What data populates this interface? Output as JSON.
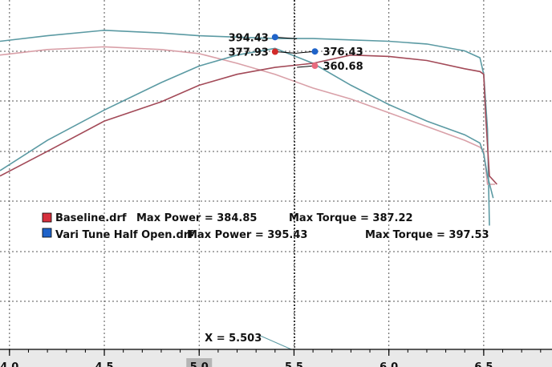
{
  "chart_data": {
    "type": "line",
    "title": "",
    "xlabel": "",
    "ylabel": "",
    "xlim": [
      3.95,
      6.86
    ],
    "ylim": [
      285,
      412
    ],
    "grid": true,
    "x_ticks": [
      {
        "value": 4.0,
        "label": "4.0"
      },
      {
        "value": 4.5,
        "label": "4.5"
      },
      {
        "value": 5.0,
        "label": "5.0"
      },
      {
        "value": 5.5,
        "label": "5.5"
      },
      {
        "value": 6.0,
        "label": "6.0"
      },
      {
        "value": 6.5,
        "label": "6.5"
      }
    ],
    "series": [
      {
        "name": "Vari Tune Half Open.drf Torque",
        "color": "#5b9aa3",
        "points": [
          [
            3.95,
            397
          ],
          [
            4.2,
            399
          ],
          [
            4.5,
            401
          ],
          [
            4.8,
            400
          ],
          [
            5.0,
            399
          ],
          [
            5.2,
            398.5
          ],
          [
            5.4,
            398
          ],
          [
            5.6,
            398
          ],
          [
            5.8,
            397.5
          ],
          [
            6.0,
            397
          ],
          [
            6.2,
            396
          ],
          [
            6.4,
            393.5
          ],
          [
            6.48,
            391
          ],
          [
            6.5,
            385
          ],
          [
            6.52,
            365
          ],
          [
            6.53,
            330
          ]
        ]
      },
      {
        "name": "Baseline.drf Torque",
        "color": "#d9a0a8",
        "points": [
          [
            3.95,
            392
          ],
          [
            4.2,
            394
          ],
          [
            4.5,
            395
          ],
          [
            4.8,
            394
          ],
          [
            5.0,
            392.5
          ],
          [
            5.2,
            389
          ],
          [
            5.4,
            385
          ],
          [
            5.6,
            380
          ],
          [
            5.8,
            376
          ],
          [
            6.0,
            371
          ],
          [
            6.2,
            366
          ],
          [
            6.4,
            361
          ],
          [
            6.48,
            358.5
          ],
          [
            6.5,
            357
          ],
          [
            6.52,
            345
          ],
          [
            6.56,
            345
          ]
        ]
      },
      {
        "name": "Vari Tune Half Open.drf Power",
        "color": "#5b9aa3",
        "points": [
          [
            3.95,
            350
          ],
          [
            4.2,
            361
          ],
          [
            4.5,
            372
          ],
          [
            4.8,
            382
          ],
          [
            5.0,
            388
          ],
          [
            5.2,
            392
          ],
          [
            5.4,
            394.43
          ],
          [
            5.6,
            389
          ],
          [
            5.8,
            381
          ],
          [
            6.0,
            374
          ],
          [
            6.2,
            368
          ],
          [
            6.4,
            363
          ],
          [
            6.48,
            360
          ],
          [
            6.5,
            356
          ],
          [
            6.52,
            348
          ],
          [
            6.55,
            340
          ]
        ]
      },
      {
        "name": "Baseline.drf Power",
        "color": "#a34a58",
        "points": [
          [
            3.95,
            348
          ],
          [
            4.2,
            357
          ],
          [
            4.5,
            368
          ],
          [
            4.8,
            375
          ],
          [
            5.0,
            381
          ],
          [
            5.2,
            385
          ],
          [
            5.4,
            387.5
          ],
          [
            5.6,
            389
          ],
          [
            5.8,
            392
          ],
          [
            6.0,
            391.5
          ],
          [
            6.2,
            390
          ],
          [
            6.4,
            387
          ],
          [
            6.48,
            386
          ],
          [
            6.5,
            385
          ],
          [
            6.51,
            370
          ],
          [
            6.53,
            348
          ],
          [
            6.57,
            345
          ]
        ]
      }
    ],
    "annotations": [
      {
        "label": "394.43",
        "x": 5.4,
        "y": 398.5,
        "color": "#1f63c9",
        "side": "left"
      },
      {
        "label": "377.93",
        "x": 5.4,
        "y": 393.2,
        "color": "#d22a2a",
        "side": "left"
      },
      {
        "label": "376.43",
        "x": 5.61,
        "y": 393.3,
        "color": "#1f63c9",
        "side": "right"
      },
      {
        "label": "360.68",
        "x": 5.61,
        "y": 388.1,
        "color": "#e86b7e",
        "side": "right"
      }
    ],
    "legend": {
      "placement": "center-left",
      "entries": [
        {
          "swatch": "#d6303d",
          "name": "Baseline.drf",
          "max_power": "Max Power = 384.85",
          "max_torque": "Max Torque = 387.22"
        },
        {
          "swatch": "#1f63c9",
          "name": "Vari Tune Half Open.drf",
          "max_power": "Max Power = 395.43",
          "max_torque": "Max Torque = 397.53"
        }
      ]
    },
    "cursor": {
      "x": 5.503,
      "label": "X = 5.503"
    }
  }
}
